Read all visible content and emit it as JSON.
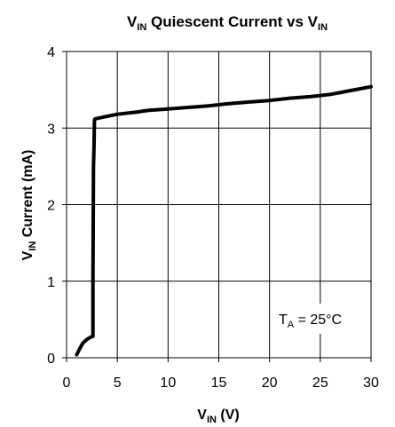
{
  "chart_data": {
    "type": "line",
    "title": {
      "main": "V",
      "sub": "IN",
      "text": " Quiescent Current vs V",
      "sub2": "IN"
    },
    "xlabel": {
      "main": "V",
      "sub": "IN",
      "text": " (V)"
    },
    "ylabel": {
      "main": "V",
      "sub": "IN",
      "text": " Current (mA)"
    },
    "xlim": [
      0,
      30
    ],
    "ylim": [
      0,
      4
    ],
    "xticks": [
      0,
      5,
      10,
      15,
      20,
      25,
      30
    ],
    "yticks": [
      0,
      1,
      2,
      3,
      4
    ],
    "grid": true,
    "annotation": {
      "main": "T",
      "sub": "A",
      "text": " = 25°C"
    },
    "series": [
      {
        "x": [
          1.0,
          1.3,
          1.6,
          2.0,
          2.4,
          2.6,
          2.6,
          2.65,
          2.7,
          2.75,
          2.8,
          3.5,
          5,
          7,
          8,
          10,
          12,
          14,
          16,
          18,
          20,
          22,
          24,
          26,
          28,
          30
        ],
        "y": [
          0.04,
          0.12,
          0.19,
          0.24,
          0.27,
          0.28,
          1.0,
          2.5,
          2.75,
          3.1,
          3.12,
          3.14,
          3.18,
          3.21,
          3.23,
          3.25,
          3.27,
          3.29,
          3.32,
          3.34,
          3.36,
          3.39,
          3.41,
          3.44,
          3.49,
          3.54
        ]
      }
    ]
  }
}
